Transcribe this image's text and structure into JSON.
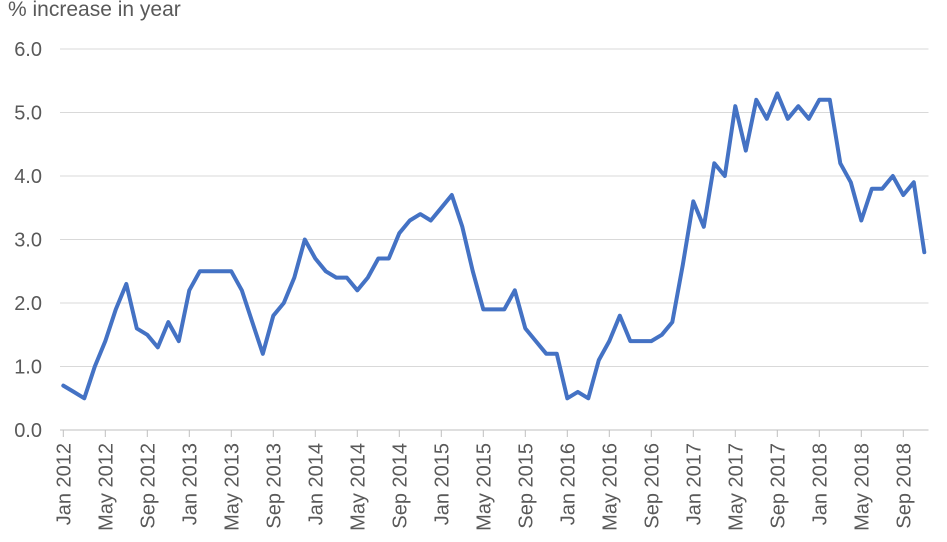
{
  "chart_data": {
    "type": "line",
    "title": "% increase in year",
    "series_name": "% increase in year",
    "line_color": "#4472c4",
    "gridline_color": "#d9d9d9",
    "axis_line_color": "#bfbfbf",
    "text_color": "#595959",
    "grid": true,
    "legend_position": "none",
    "ylim": [
      0.0,
      6.0
    ],
    "y_tick_labels": [
      "0.0",
      "1.0",
      "2.0",
      "3.0",
      "4.0",
      "5.0",
      "6.0"
    ],
    "x_tick_labels": [
      "Jan 2012",
      "May 2012",
      "Sep 2012",
      "Jan 2013",
      "May 2013",
      "Sep 2013",
      "Jan 2014",
      "May 2014",
      "Sep 2014",
      "Jan 2015",
      "May 2015",
      "Sep 2015",
      "Jan 2016",
      "May 2016",
      "Sep 2016",
      "Jan 2017",
      "May 2017",
      "Sep 2017",
      "Jan 2018",
      "May 2018",
      "Sep 2018"
    ],
    "x": [
      "Jan 2012",
      "Feb 2012",
      "Mar 2012",
      "Apr 2012",
      "May 2012",
      "Jun 2012",
      "Jul 2012",
      "Aug 2012",
      "Sep 2012",
      "Oct 2012",
      "Nov 2012",
      "Dec 2012",
      "Jan 2013",
      "Feb 2013",
      "Mar 2013",
      "Apr 2013",
      "May 2013",
      "Jun 2013",
      "Jul 2013",
      "Aug 2013",
      "Sep 2013",
      "Oct 2013",
      "Nov 2013",
      "Dec 2013",
      "Jan 2014",
      "Feb 2014",
      "Mar 2014",
      "Apr 2014",
      "May 2014",
      "Jun 2014",
      "Jul 2014",
      "Aug 2014",
      "Sep 2014",
      "Oct 2014",
      "Nov 2014",
      "Dec 2014",
      "Jan 2015",
      "Feb 2015",
      "Mar 2015",
      "Apr 2015",
      "May 2015",
      "Jun 2015",
      "Jul 2015",
      "Aug 2015",
      "Sep 2015",
      "Oct 2015",
      "Nov 2015",
      "Dec 2015",
      "Jan 2016",
      "Feb 2016",
      "Mar 2016",
      "Apr 2016",
      "May 2016",
      "Jun 2016",
      "Jul 2016",
      "Aug 2016",
      "Sep 2016",
      "Oct 2016",
      "Nov 2016",
      "Dec 2016",
      "Jan 2017",
      "Feb 2017",
      "Mar 2017",
      "Apr 2017",
      "May 2017",
      "Jun 2017",
      "Jul 2017",
      "Aug 2017",
      "Sep 2017",
      "Oct 2017",
      "Nov 2017",
      "Dec 2017",
      "Jan 2018",
      "Feb 2018",
      "Mar 2018",
      "Apr 2018",
      "May 2018",
      "Jun 2018",
      "Jul 2018",
      "Aug 2018",
      "Sep 2018",
      "Oct 2018",
      "Nov 2018"
    ],
    "values": [
      0.7,
      0.6,
      0.5,
      1.0,
      1.4,
      1.9,
      2.3,
      1.6,
      1.5,
      1.3,
      1.7,
      1.4,
      2.2,
      2.5,
      2.5,
      2.5,
      2.5,
      2.2,
      1.7,
      1.2,
      1.8,
      2.0,
      2.4,
      3.0,
      2.7,
      2.5,
      2.4,
      2.4,
      2.2,
      2.4,
      2.7,
      2.7,
      3.1,
      3.3,
      3.4,
      3.3,
      3.5,
      3.7,
      3.2,
      2.5,
      1.9,
      1.9,
      1.9,
      2.2,
      1.6,
      1.4,
      1.2,
      1.2,
      0.5,
      0.6,
      0.5,
      1.1,
      1.4,
      1.8,
      1.4,
      1.4,
      1.4,
      1.5,
      1.7,
      2.6,
      3.6,
      3.2,
      4.2,
      4.0,
      5.1,
      4.4,
      5.2,
      4.9,
      5.3,
      4.9,
      5.1,
      4.9,
      5.2,
      5.2,
      4.2,
      3.9,
      3.3,
      3.8,
      3.8,
      4.0,
      3.7,
      3.9,
      2.8
    ]
  }
}
